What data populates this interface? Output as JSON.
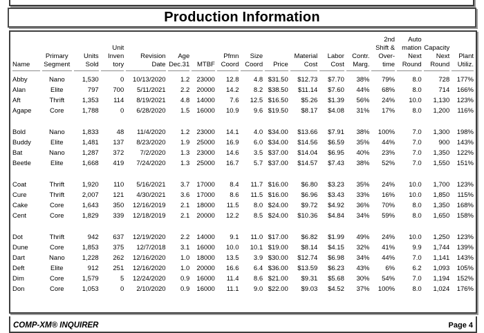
{
  "page": {
    "title": "Production Information",
    "footer_left": "COMP-XM® INQUIRER",
    "footer_right": "Page 4"
  },
  "table": {
    "columns": [
      {
        "key": "name",
        "label": "Name",
        "align": "left",
        "width": 40
      },
      {
        "key": "segment",
        "label": "Primary\nSegment",
        "align": "center",
        "width": 44
      },
      {
        "key": "units_sold",
        "label": "Units\nSold",
        "align": "right",
        "width": 36
      },
      {
        "key": "inventory",
        "label": "Unit\nInven\ntory",
        "align": "right",
        "width": 34
      },
      {
        "key": "revision_date",
        "label": "Revision Date",
        "align": "right",
        "width": 58
      },
      {
        "key": "age_dec31",
        "label": "Age\nDec.31",
        "align": "right",
        "width": 32
      },
      {
        "key": "mtbf",
        "label": "MTBF",
        "align": "right",
        "width": 34
      },
      {
        "key": "pfmn_coord",
        "label": "Pfmn\nCoord",
        "align": "right",
        "width": 32
      },
      {
        "key": "size_coord",
        "label": "Size\nCoord",
        "align": "right",
        "width": 32
      },
      {
        "key": "price",
        "label": "Price",
        "align": "right",
        "width": 34
      },
      {
        "key": "material_cost",
        "label": "Material\nCost",
        "align": "right",
        "width": 40
      },
      {
        "key": "labor_cost",
        "label": "Labor\nCost",
        "align": "right",
        "width": 36
      },
      {
        "key": "contr_marg",
        "label": "Contr.\nMarg.",
        "align": "right",
        "width": 34
      },
      {
        "key": "shift_overtime",
        "label": "2nd\nShift &\nOver-\ntime",
        "align": "right",
        "width": 34
      },
      {
        "key": "automation",
        "label": "Auto\nmation\nNext\nRound",
        "align": "right",
        "width": 36
      },
      {
        "key": "capacity",
        "label": "Capacity\nNext\nRound",
        "align": "right",
        "width": 38
      },
      {
        "key": "plant_utiliz",
        "label": "Plant\nUtiliz.",
        "align": "right",
        "width": 32
      }
    ],
    "groups": [
      {
        "rows": [
          [
            "Abby",
            "Nano",
            "1,530",
            "0",
            "10/13/2020",
            "1.2",
            "23000",
            "12.8",
            "4.8",
            "$31.50",
            "$12.73",
            "$7.70",
            "38%",
            "79%",
            "8.0",
            "728",
            "177%"
          ],
          [
            "Alan",
            "Elite",
            "797",
            "700",
            "5/11/2021",
            "2.2",
            "20000",
            "14.2",
            "8.2",
            "$38.50",
            "$11.14",
            "$7.60",
            "44%",
            "68%",
            "8.0",
            "714",
            "166%"
          ],
          [
            "Aft",
            "Thrift",
            "1,353",
            "114",
            "8/19/2021",
            "4.8",
            "14000",
            "7.6",
            "12.5",
            "$16.50",
            "$5.26",
            "$1.39",
            "56%",
            "24%",
            "10.0",
            "1,130",
            "123%"
          ],
          [
            "Agape",
            "Core",
            "1,788",
            "0",
            "6/28/2020",
            "1.5",
            "16000",
            "10.9",
            "9.6",
            "$19.50",
            "$8.17",
            "$4.08",
            "31%",
            "17%",
            "8.0",
            "1,200",
            "116%"
          ]
        ]
      },
      {
        "rows": [
          [
            "Bold",
            "Nano",
            "1,833",
            "48",
            "11/4/2020",
            "1.2",
            "23000",
            "14.1",
            "4.0",
            "$34.00",
            "$13.66",
            "$7.91",
            "38%",
            "100%",
            "7.0",
            "1,300",
            "198%"
          ],
          [
            "Buddy",
            "Elite",
            "1,481",
            "137",
            "8/23/2020",
            "1.9",
            "25000",
            "16.9",
            "6.0",
            "$34.00",
            "$14.56",
            "$6.59",
            "35%",
            "44%",
            "7.0",
            "900",
            "143%"
          ],
          [
            "Bat",
            "Nano",
            "1,287",
            "372",
            "7/2/2020",
            "1.3",
            "23000",
            "14.6",
            "3.5",
            "$37.00",
            "$14.04",
            "$6.95",
            "40%",
            "23%",
            "7.0",
            "1,350",
            "122%"
          ],
          [
            "Beetle",
            "Elite",
            "1,668",
            "419",
            "7/24/2020",
            "1.3",
            "25000",
            "16.7",
            "5.7",
            "$37.00",
            "$14.57",
            "$7.43",
            "38%",
            "52%",
            "7.0",
            "1,550",
            "151%"
          ]
        ]
      },
      {
        "rows": [
          [
            "Coat",
            "Thrift",
            "1,920",
            "110",
            "5/16/2021",
            "3.7",
            "17000",
            "8.4",
            "11.7",
            "$16.00",
            "$6.80",
            "$3.23",
            "35%",
            "24%",
            "10.0",
            "1,700",
            "123%"
          ],
          [
            "Cure",
            "Thrift",
            "2,007",
            "121",
            "4/30/2021",
            "3.6",
            "17000",
            "8.6",
            "11.5",
            "$16.00",
            "$6.96",
            "$3.43",
            "33%",
            "16%",
            "10.0",
            "1,850",
            "115%"
          ],
          [
            "Cake",
            "Core",
            "1,643",
            "350",
            "12/16/2019",
            "2.1",
            "18000",
            "11.5",
            "8.0",
            "$24.00",
            "$9.72",
            "$4.92",
            "36%",
            "70%",
            "8.0",
            "1,350",
            "168%"
          ],
          [
            "Cent",
            "Core",
            "1,829",
            "339",
            "12/18/2019",
            "2.1",
            "20000",
            "12.2",
            "8.5",
            "$24.00",
            "$10.36",
            "$4.84",
            "34%",
            "59%",
            "8.0",
            "1,650",
            "158%"
          ]
        ]
      },
      {
        "rows": [
          [
            "Dot",
            "Thrift",
            "942",
            "637",
            "12/19/2020",
            "2.2",
            "14000",
            "9.1",
            "11.0",
            "$17.00",
            "$6.82",
            "$1.99",
            "49%",
            "24%",
            "10.0",
            "1,250",
            "123%"
          ],
          [
            "Dune",
            "Core",
            "1,853",
            "375",
            "12/7/2018",
            "3.1",
            "16000",
            "10.0",
            "10.1",
            "$19.00",
            "$8.14",
            "$4.15",
            "32%",
            "41%",
            "9.9",
            "1,744",
            "139%"
          ],
          [
            "Dart",
            "Nano",
            "1,228",
            "262",
            "12/16/2020",
            "1.0",
            "18000",
            "13.5",
            "3.9",
            "$30.00",
            "$12.74",
            "$6.98",
            "34%",
            "44%",
            "7.0",
            "1,141",
            "143%"
          ],
          [
            "Deft",
            "Elite",
            "912",
            "251",
            "12/16/2020",
            "1.0",
            "20000",
            "16.6",
            "6.4",
            "$36.00",
            "$13.59",
            "$6.23",
            "43%",
            "6%",
            "6.2",
            "1,093",
            "105%"
          ],
          [
            "Dim",
            "Core",
            "1,579",
            "5",
            "12/24/2020",
            "0.9",
            "16000",
            "11.4",
            "8.6",
            "$21.00",
            "$9.31",
            "$5.68",
            "30%",
            "54%",
            "7.0",
            "1,194",
            "152%"
          ],
          [
            "Don",
            "Core",
            "1,053",
            "0",
            "2/10/2020",
            "0.9",
            "16000",
            "11.1",
            "9.0",
            "$22.00",
            "$9.03",
            "$4.52",
            "37%",
            "100%",
            "8.0",
            "1,024",
            "176%"
          ]
        ]
      }
    ]
  }
}
